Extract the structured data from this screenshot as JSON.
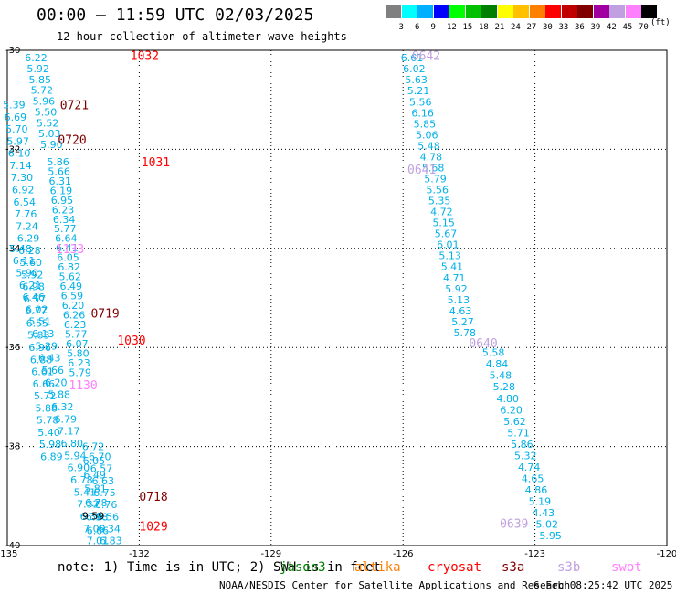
{
  "header": {
    "title": "00:00 – 11:59 UTC 02/03/2025",
    "subtitle": "12 hour collection of altimeter wave heights"
  },
  "colorbar": {
    "colors": [
      "#808080",
      "#00ffff",
      "#00b0ff",
      "#0000ff",
      "#00ff00",
      "#00c000",
      "#008000",
      "#ffff00",
      "#ffc000",
      "#ff8000",
      "#ff0000",
      "#c00000",
      "#800000",
      "#a000a0",
      "#c0a0e0",
      "#ff80ff",
      "#000000"
    ],
    "labels": [
      "3",
      "6",
      "9",
      "12",
      "15",
      "18",
      "21",
      "24",
      "27",
      "30",
      "33",
      "36",
      "39",
      "42",
      "45",
      "70"
    ],
    "unit": "(ft)"
  },
  "map": {
    "lon_min": -135,
    "lon_max": -120,
    "lat_min": -40,
    "lat_max": -30,
    "lon_ticks": [
      -135,
      -132,
      -129,
      -126,
      -123,
      -120
    ],
    "lon_tick_labels": [
      "-135",
      "-132",
      "-129",
      "-126",
      "-123",
      "-120"
    ],
    "lat_ticks": [
      -30,
      -32,
      -34,
      -36,
      -38,
      -40
    ],
    "lat_tick_labels": [
      "-30",
      "-32",
      "-34",
      "-36",
      "-38",
      "-40"
    ],
    "pass_labels": [
      {
        "text": "1032",
        "lon": -132.2,
        "lat": -30.1,
        "color": "#ff0000"
      },
      {
        "text": "0721",
        "lon": -133.8,
        "lat": -31.1,
        "color": "#800000"
      },
      {
        "text": "0720",
        "lon": -133.85,
        "lat": -31.8,
        "color": "#800000"
      },
      {
        "text": "1031",
        "lon": -131.95,
        "lat": -32.25,
        "color": "#ff0000"
      },
      {
        "text": "0719",
        "lon": -133.1,
        "lat": -35.3,
        "color": "#800000"
      },
      {
        "text": "1030",
        "lon": -132.5,
        "lat": -35.85,
        "color": "#ff0000"
      },
      {
        "text": "0718",
        "lon": -132.0,
        "lat": -39.0,
        "color": "#800000"
      },
      {
        "text": "1029",
        "lon": -132.0,
        "lat": -39.6,
        "color": "#ff0000"
      },
      {
        "text": "0642",
        "lon": -125.8,
        "lat": -30.1,
        "color": "#c0a0e0"
      },
      {
        "text": "0641",
        "lon": -125.9,
        "lat": -32.4,
        "color": "#c0a0e0"
      },
      {
        "text": "0640",
        "lon": -124.5,
        "lat": -35.9,
        "color": "#c0a0e0"
      },
      {
        "text": "0639",
        "lon": -123.8,
        "lat": -39.55,
        "color": "#c0a0e0"
      },
      {
        "text": "1133",
        "lon": -133.9,
        "lat": -34.0,
        "color": "#ff80ff"
      },
      {
        "text": "1130",
        "lon": -133.6,
        "lat": -36.75,
        "color": "#ff80ff"
      }
    ],
    "wave_tracks": [
      {
        "color": "#00b0e8",
        "lon_start": -134.6,
        "lon_end": -134.25,
        "lat_start": -30.15,
        "lat_end": -31.9,
        "values": [
          "6.22",
          "5.92",
          "5.85",
          "5.72",
          "5.96",
          "5.50",
          "5.52",
          "5.03",
          "5.90"
        ]
      },
      {
        "color": "#00b0e8",
        "lon_start": -134.1,
        "lon_end": -133.6,
        "lat_start": -32.25,
        "lat_end": -36.5,
        "values": [
          "5.86",
          "5.66",
          "6.31",
          "6.19",
          "6.95",
          "6.23",
          "6.34",
          "5.77",
          "6.64",
          "6.41",
          "6.05",
          "6.82",
          "5.62",
          "6.49",
          "6.59",
          "6.20",
          "6.26",
          "6.23",
          "5.77",
          "6.07",
          "5.80",
          "6.23",
          "5.79"
        ]
      },
      {
        "color": "#00b0e8",
        "lon_start": -135.1,
        "lon_end": -134.25,
        "lat_start": -31.1,
        "lat_end": -38.2,
        "values": [
          "5.39",
          "6.69",
          "5.70",
          "5.97",
          "6.10",
          "7.14",
          "7.30",
          "6.92",
          "6.54",
          "7.76",
          "7.24",
          "6.29",
          "6.28",
          "5.60",
          "5.92",
          "6.98",
          "6.57",
          "6.77",
          "6.55",
          "5.83",
          "6.96",
          "6.88",
          "6.61",
          "6.66",
          "5.72",
          "5.88",
          "5.78",
          "5.40",
          "5.98",
          "6.89"
        ]
      },
      {
        "color": "#00b0e8",
        "lon_start": -134.95,
        "lon_end": -133.2,
        "lat_start": -34.0,
        "lat_end": -39.9,
        "values": [
          "5.48",
          "6.11",
          "5.90",
          "6.21",
          "6.46",
          "6.02",
          "5.51",
          "6.13",
          "5.29",
          "6.43",
          "5.66",
          "6.20",
          "5.88",
          "6.32",
          "6.79",
          "7.17",
          "6.80",
          "5.94",
          "6.90",
          "6.78",
          "5.41",
          "7.32",
          "6.39",
          "7.09",
          "7.01"
        ]
      },
      {
        "color": "#00b0e8",
        "lon_start": -133.15,
        "lon_end": -132.9,
        "lat_start": -38.2,
        "lat_end": -39.9,
        "values": [
          "6.70",
          "6.57",
          "6.63",
          "6.75",
          "6.76",
          "6.56",
          "6.34",
          "6.83"
        ]
      },
      {
        "color": "#00b0e8",
        "lon_start": -133.3,
        "lon_end": -133.2,
        "lat_start": -38.0,
        "lat_end": -39.7,
        "values": [
          "6.72",
          "6.05",
          "6.49",
          "5.81",
          "6.78",
          "6.98",
          "6.66"
        ]
      },
      {
        "color": "#00b0e8",
        "lon_start": -126.05,
        "lon_end": -124.85,
        "lat_start": -30.15,
        "lat_end": -35.7,
        "values": [
          "6.61",
          "6.02",
          "5.63",
          "5.21",
          "5.56",
          "6.16",
          "5.85",
          "5.06",
          "5.48",
          "4.78",
          "5.68",
          "5.79",
          "5.56",
          "5.35",
          "4.72",
          "5.15",
          "5.67",
          "6.01",
          "5.13",
          "5.41",
          "4.71",
          "5.92",
          "5.13",
          "4.63",
          "5.27",
          "5.78"
        ]
      },
      {
        "color": "#00b0e8",
        "lon_start": -124.2,
        "lon_end": -122.9,
        "lat_start": -36.1,
        "lat_end": -39.8,
        "values": [
          "5.58",
          "4.84",
          "5.48",
          "5.28",
          "4.80",
          "6.20",
          "5.62",
          "5.71",
          "5.86",
          "5.32",
          "4.74",
          "4.65",
          "4.86",
          "5.19",
          "4.43",
          "5.02",
          "5.95"
        ]
      }
    ],
    "special_values": [
      {
        "text": "9.59",
        "lon": -133.3,
        "lat": -39.4,
        "color": "#000000"
      }
    ]
  },
  "legend": {
    "note": "note: 1) Time is in UTC; 2) SWH is in feet",
    "satellites": [
      {
        "name": "jason3",
        "color": "#008000"
      },
      {
        "name": "altika",
        "color": "#ff8000"
      },
      {
        "name": "cryosat",
        "color": "#ff0000"
      },
      {
        "name": "s3a",
        "color": "#800000"
      },
      {
        "name": "s3b",
        "color": "#c0a0e0"
      },
      {
        "name": "swot",
        "color": "#ff80ff"
      }
    ]
  },
  "footer": {
    "credit": "NOAA/NESDIS Center for Satellite Applications and Research",
    "date": "6 Feb 08:25:42 UTC 2025"
  }
}
